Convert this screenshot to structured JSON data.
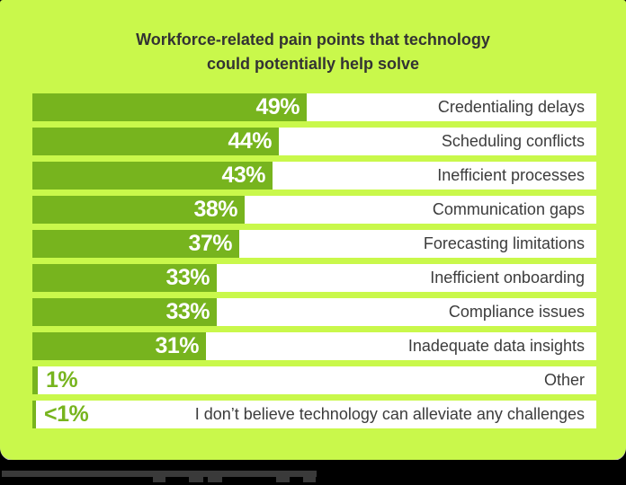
{
  "title": {
    "line1": "Workforce-related pain points that technology",
    "line2": "could potentially help solve"
  },
  "chart_data": {
    "type": "bar",
    "orientation": "horizontal",
    "title": "Workforce-related pain points that technology could potentially help solve",
    "categories": [
      "Credentialing delays",
      "Scheduling conflicts",
      "Inefficient processes",
      "Communication gaps",
      "Forecasting limitations",
      "Inefficient onboarding",
      "Compliance issues",
      "Inadequate data insights",
      "Other",
      "I don’t believe technology can alleviate any challenges"
    ],
    "values": [
      49,
      44,
      43,
      38,
      37,
      33,
      33,
      31,
      1,
      0.5
    ],
    "value_labels": [
      "49%",
      "44%",
      "43%",
      "38%",
      "37%",
      "33%",
      "33%",
      "31%",
      "1%",
      "<1%"
    ],
    "unit": "%",
    "xlim": [
      0,
      100
    ],
    "grid": false,
    "legend": "none"
  },
  "colors": {
    "background": "#c9f84b",
    "bar_fill": "#77b41e",
    "row_background": "#ffffff",
    "title_text": "#333333",
    "label_text": "#3c3c3c",
    "value_text_on_bar": "#ffffff",
    "value_text_small": "#77b41e",
    "footer_background": "#000000",
    "strip": "#3a3a3a"
  }
}
